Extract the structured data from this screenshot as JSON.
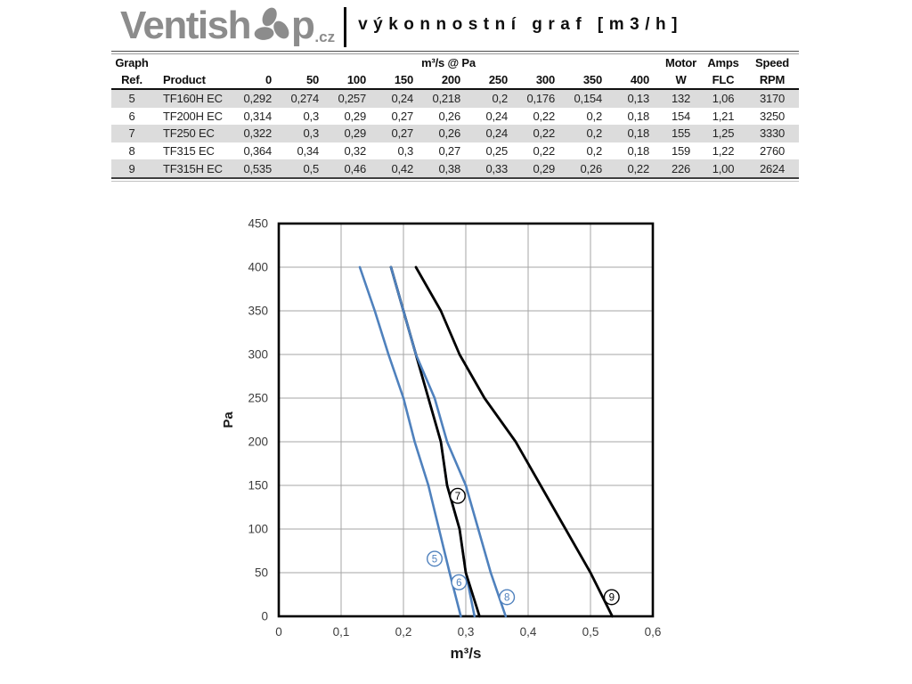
{
  "logo": {
    "part1": "Ventish",
    "part2": "p",
    "tld": ".cz",
    "color": "#8c8c8c"
  },
  "header": {
    "title": "výkonnostní graf [m3/h]"
  },
  "table": {
    "group_header": {
      "graph": "Graph",
      "m3s_at_pa": "m³/s @ Pa",
      "motor": "Motor",
      "amps": "Amps",
      "speed": "Speed"
    },
    "columns": {
      "ref": "Ref.",
      "product": "Product",
      "pa": [
        "0",
        "50",
        "100",
        "150",
        "200",
        "250",
        "300",
        "350",
        "400"
      ],
      "motor_w": "W",
      "amps_flc": "FLC",
      "speed_rpm": "RPM"
    },
    "rows": [
      {
        "ref": "5",
        "product": "TF160H EC",
        "values": [
          "0,292",
          "0,274",
          "0,257",
          "0,24",
          "0,218",
          "0,2",
          "0,176",
          "0,154",
          "0,13"
        ],
        "motor_w": "132",
        "amps_flc": "1,06",
        "speed_rpm": "3170"
      },
      {
        "ref": "6",
        "product": "TF200H EC",
        "values": [
          "0,314",
          "0,3",
          "0,29",
          "0,27",
          "0,26",
          "0,24",
          "0,22",
          "0,2",
          "0,18"
        ],
        "motor_w": "154",
        "amps_flc": "1,21",
        "speed_rpm": "3250"
      },
      {
        "ref": "7",
        "product": "TF250 EC",
        "values": [
          "0,322",
          "0,3",
          "0,29",
          "0,27",
          "0,26",
          "0,24",
          "0,22",
          "0,2",
          "0,18"
        ],
        "motor_w": "155",
        "amps_flc": "1,25",
        "speed_rpm": "3330"
      },
      {
        "ref": "8",
        "product": "TF315 EC",
        "values": [
          "0,364",
          "0,34",
          "0,32",
          "0,3",
          "0,27",
          "0,25",
          "0,22",
          "0,2",
          "0,18"
        ],
        "motor_w": "159",
        "amps_flc": "1,22",
        "speed_rpm": "2760"
      },
      {
        "ref": "9",
        "product": "TF315H EC",
        "values": [
          "0,535",
          "0,5",
          "0,46",
          "0,42",
          "0,38",
          "0,33",
          "0,29",
          "0,26",
          "0,22"
        ],
        "motor_w": "226",
        "amps_flc": "1,00",
        "speed_rpm": "2624"
      }
    ]
  },
  "chart_data": {
    "type": "line",
    "xlabel": "m³/s",
    "ylabel": "Pa",
    "xlim": [
      0,
      0.6
    ],
    "ylim": [
      0,
      450
    ],
    "grid": true,
    "x_ticks": {
      "values": [
        0,
        0.1,
        0.2,
        0.3,
        0.4,
        0.5,
        0.6
      ],
      "labels": [
        "0",
        "0,1",
        "0,2",
        "0,3",
        "0,4",
        "0,5",
        "0,6"
      ]
    },
    "y_ticks": [
      0,
      50,
      100,
      150,
      200,
      250,
      300,
      350,
      400,
      450
    ],
    "pa_levels": [
      0,
      50,
      100,
      150,
      200,
      250,
      300,
      350,
      400
    ],
    "colors": {
      "blue_curve": "#4f81bd",
      "black_curve": "#000000",
      "gridline": "#a6a6a6"
    },
    "series": [
      {
        "name": "5",
        "color": "#4f81bd",
        "flow": [
          0.292,
          0.274,
          0.257,
          0.24,
          0.218,
          0.2,
          0.176,
          0.154,
          0.13
        ],
        "label": {
          "x": 0.25,
          "pa": 66
        }
      },
      {
        "name": "6",
        "color": "#4f81bd",
        "flow": [
          0.314,
          0.3,
          0.29,
          0.27,
          0.26,
          0.24,
          0.22,
          0.2,
          0.18
        ],
        "label": {
          "x": 0.289,
          "pa": 39
        }
      },
      {
        "name": "7",
        "color": "#000000",
        "flow": [
          0.322,
          0.3,
          0.29,
          0.27,
          0.26,
          0.24,
          0.22,
          0.2,
          0.18
        ],
        "label": {
          "x": 0.287,
          "pa": 138
        }
      },
      {
        "name": "8",
        "color": "#4f81bd",
        "flow": [
          0.364,
          0.34,
          0.32,
          0.3,
          0.27,
          0.25,
          0.22,
          0.2,
          0.18
        ],
        "label": {
          "x": 0.366,
          "pa": 22
        }
      },
      {
        "name": "9",
        "color": "#000000",
        "flow": [
          0.535,
          0.5,
          0.46,
          0.42,
          0.38,
          0.33,
          0.29,
          0.26,
          0.22
        ],
        "label": {
          "x": 0.534,
          "pa": 22
        }
      }
    ]
  }
}
